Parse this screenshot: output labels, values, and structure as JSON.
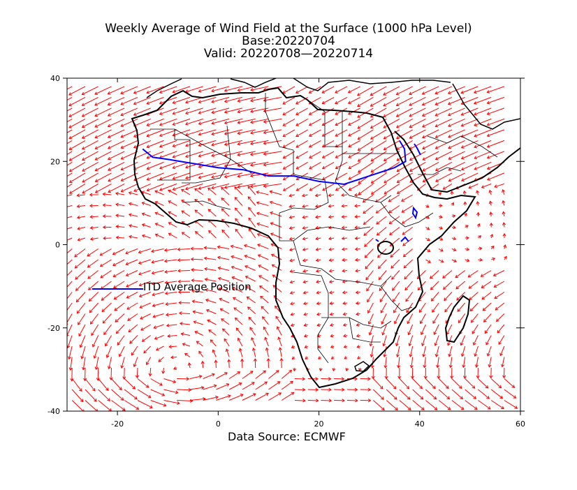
{
  "title": {
    "line1": "Weekly Average of Wind Field at the Surface (1000 hPa Level)",
    "line2": "Base:20220704",
    "line3": "Valid: 20220708—20220714"
  },
  "source": "Data Source: ECMWF",
  "legend": {
    "label": "ITD Average Position"
  },
  "colors": {
    "wind_vectors": "#ff0000",
    "itd_line": "#0000ff",
    "coastline": "#000000",
    "borders": "#000000"
  },
  "axes": {
    "x_ticks": [
      "-20",
      "0",
      "20",
      "40",
      "60"
    ],
    "y_ticks": [
      "40",
      "20",
      "0",
      "-20",
      "-40"
    ],
    "xlim": [
      -30,
      60
    ],
    "ylim": [
      -40,
      40
    ]
  },
  "map_data": {
    "projection": "lat-lon",
    "itd_line": [
      [
        -15,
        23
      ],
      [
        -13,
        21
      ],
      [
        -10,
        20.5
      ],
      [
        -5,
        19.5
      ],
      [
        0,
        18.5
      ],
      [
        5,
        18
      ],
      [
        10,
        16.5
      ],
      [
        15,
        16.5
      ],
      [
        20,
        15.2
      ],
      [
        25,
        14.5
      ],
      [
        30,
        16.5
      ],
      [
        35,
        18.5
      ],
      [
        37.2,
        20
      ],
      [
        37,
        23
      ],
      [
        36,
        25
      ]
    ]
  }
}
